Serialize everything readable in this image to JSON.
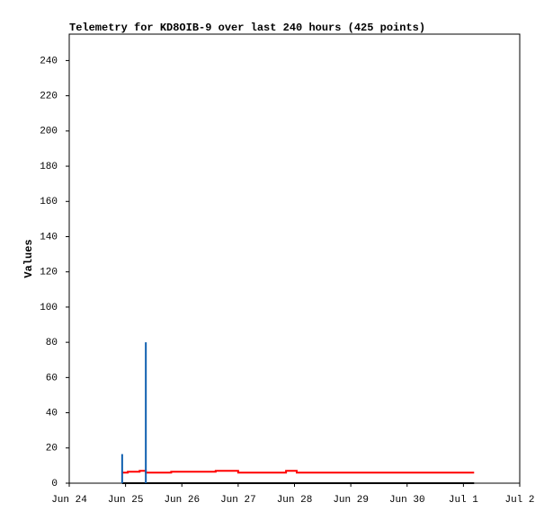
{
  "chart_data": {
    "type": "line",
    "title": "Telemetry for KD8OIB-9 over last 240 hours (425 points)",
    "y_label": "Values",
    "xlim": [
      0,
      8
    ],
    "xticks": [
      {
        "value": 0,
        "label": "Jun 24"
      },
      {
        "value": 1,
        "label": "Jun 25"
      },
      {
        "value": 2,
        "label": "Jun 26"
      },
      {
        "value": 3,
        "label": "Jun 27"
      },
      {
        "value": 4,
        "label": "Jun 28"
      },
      {
        "value": 5,
        "label": "Jun 29"
      },
      {
        "value": 6,
        "label": "Jun 30"
      },
      {
        "value": 7,
        "label": "Jul 1"
      },
      {
        "value": 8,
        "label": "Jul 2"
      }
    ],
    "ylim": [
      0,
      255
    ],
    "yticks": [
      0,
      20,
      40,
      60,
      80,
      100,
      120,
      140,
      160,
      180,
      200,
      220,
      240
    ],
    "series": [
      {
        "color": "#000000",
        "x": [
          0.94,
          7.19
        ],
        "values": [
          0,
          0
        ]
      },
      {
        "color": "#ff0000",
        "x": [
          0.94,
          1.04,
          1.04,
          1.25,
          1.25,
          1.36,
          1.36,
          1.81,
          1.81,
          2.6,
          2.6,
          3.0,
          3.0,
          3.85,
          3.85,
          4.04,
          4.04,
          7.19
        ],
        "values": [
          6,
          6,
          6.5,
          6.5,
          7,
          7,
          6,
          6,
          6.5,
          6.5,
          7,
          7,
          6,
          6,
          7,
          7,
          6,
          6
        ]
      },
      {
        "color": "#1060b0",
        "x": [
          0.94,
          0.94,
          0.95,
          1.36,
          1.36
        ],
        "values": [
          0,
          16.5,
          null,
          0,
          80
        ]
      }
    ]
  }
}
